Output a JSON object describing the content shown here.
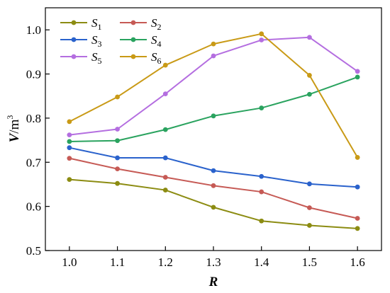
{
  "chart_data": {
    "type": "line",
    "xlabel": "R",
    "ylabel": "V/m³",
    "ylabel_parts": {
      "var": "V",
      "unit": "/m",
      "exp": "3"
    },
    "x": [
      1.0,
      1.1,
      1.2,
      1.3,
      1.4,
      1.5,
      1.6
    ],
    "xlim": [
      0.95,
      1.65
    ],
    "ylim": [
      0.5,
      1.05
    ],
    "xticks": [
      "1.0",
      "1.1",
      "1.2",
      "1.3",
      "1.4",
      "1.5",
      "1.6"
    ],
    "yticks": [
      "0.5",
      "0.6",
      "0.7",
      "0.8",
      "0.9",
      "1.0"
    ],
    "grid": false,
    "legend_position": "top-left",
    "series": [
      {
        "name": "S1",
        "base": "S",
        "sub": "1",
        "color": "#8c8c12",
        "values": [
          0.661,
          0.652,
          0.637,
          0.598,
          0.567,
          0.557,
          0.55
        ]
      },
      {
        "name": "S2",
        "base": "S",
        "sub": "2",
        "color": "#c65a55",
        "values": [
          0.709,
          0.685,
          0.666,
          0.647,
          0.633,
          0.597,
          0.573
        ]
      },
      {
        "name": "S3",
        "base": "S",
        "sub": "3",
        "color": "#2a62cc",
        "values": [
          0.733,
          0.71,
          0.71,
          0.681,
          0.668,
          0.651,
          0.644
        ]
      },
      {
        "name": "S4",
        "base": "S",
        "sub": "4",
        "color": "#2aa35f",
        "values": [
          0.747,
          0.749,
          0.774,
          0.805,
          0.823,
          0.854,
          0.893
        ]
      },
      {
        "name": "S5",
        "base": "S",
        "sub": "5",
        "color": "#b46ee0",
        "values": [
          0.762,
          0.775,
          0.855,
          0.941,
          0.977,
          0.983,
          0.906
        ]
      },
      {
        "name": "S6",
        "base": "S",
        "sub": "6",
        "color": "#c99a16",
        "values": [
          0.792,
          0.848,
          0.92,
          0.968,
          0.991,
          0.897,
          0.711
        ]
      }
    ]
  }
}
